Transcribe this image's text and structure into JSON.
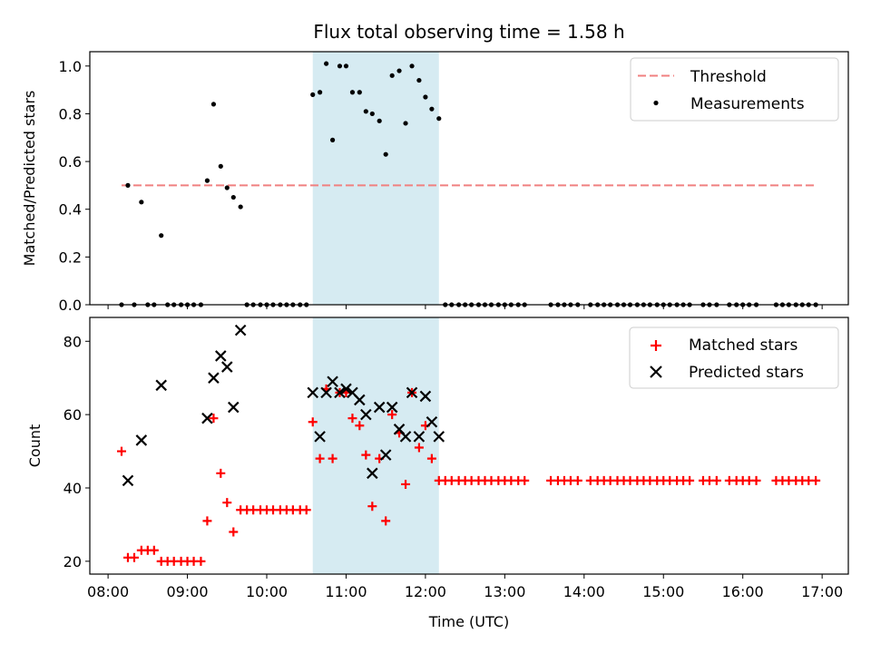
{
  "title": "Flux total observing time = 1.58 h",
  "colors": {
    "threshold": "#f08080",
    "measurement": "#000000",
    "matched": "#ff0000",
    "predicted": "#000000",
    "shade": "#add8e6"
  },
  "chart_data": [
    {
      "type": "scatter",
      "name": "ratio-panel",
      "ylabel": "Matched/Predicted stars",
      "xlabel": "",
      "xlim": [
        7.77,
        17.33
      ],
      "ylim": [
        0.0,
        1.06
      ],
      "yticks": [
        0.0,
        0.2,
        0.4,
        0.6,
        0.8,
        1.0
      ],
      "ytick_labels": [
        "0.0",
        "0.2",
        "0.4",
        "0.6",
        "0.8",
        "1.0"
      ],
      "shaded_region": [
        10.58,
        12.17
      ],
      "legend": {
        "position": "top-right",
        "entries": [
          "Threshold",
          "Measurements"
        ]
      },
      "threshold": {
        "name": "Threshold",
        "value": 0.5,
        "x_range": [
          8.17,
          16.92
        ]
      },
      "series": [
        {
          "name": "Measurements",
          "marker": "dot",
          "points": [
            [
              8.17,
              0.0
            ],
            [
              8.25,
              0.5
            ],
            [
              8.33,
              0.0
            ],
            [
              8.42,
              0.43
            ],
            [
              8.5,
              0.0
            ],
            [
              8.58,
              0.0
            ],
            [
              8.67,
              0.29
            ],
            [
              8.75,
              0.0
            ],
            [
              8.83,
              0.0
            ],
            [
              8.92,
              0.0
            ],
            [
              9.0,
              0.0
            ],
            [
              9.08,
              0.0
            ],
            [
              9.17,
              0.0
            ],
            [
              9.25,
              0.52
            ],
            [
              9.33,
              0.84
            ],
            [
              9.42,
              0.58
            ],
            [
              9.5,
              0.49
            ],
            [
              9.58,
              0.45
            ],
            [
              9.67,
              0.41
            ],
            [
              9.75,
              0.0
            ],
            [
              9.83,
              0.0
            ],
            [
              9.92,
              0.0
            ],
            [
              10.0,
              0.0
            ],
            [
              10.08,
              0.0
            ],
            [
              10.17,
              0.0
            ],
            [
              10.25,
              0.0
            ],
            [
              10.33,
              0.0
            ],
            [
              10.42,
              0.0
            ],
            [
              10.5,
              0.0
            ],
            [
              10.58,
              0.88
            ],
            [
              10.67,
              0.89
            ],
            [
              10.75,
              1.01
            ],
            [
              10.83,
              0.69
            ],
            [
              10.92,
              1.0
            ],
            [
              11.0,
              1.0
            ],
            [
              11.08,
              0.89
            ],
            [
              11.17,
              0.89
            ],
            [
              11.25,
              0.81
            ],
            [
              11.33,
              0.8
            ],
            [
              11.42,
              0.77
            ],
            [
              11.5,
              0.63
            ],
            [
              11.58,
              0.96
            ],
            [
              11.67,
              0.98
            ],
            [
              11.75,
              0.76
            ],
            [
              11.83,
              1.0
            ],
            [
              11.92,
              0.94
            ],
            [
              12.0,
              0.87
            ],
            [
              12.08,
              0.82
            ],
            [
              12.17,
              0.78
            ],
            [
              12.25,
              0.0
            ],
            [
              12.33,
              0.0
            ],
            [
              12.42,
              0.0
            ],
            [
              12.5,
              0.0
            ],
            [
              12.58,
              0.0
            ],
            [
              12.67,
              0.0
            ],
            [
              12.75,
              0.0
            ],
            [
              12.83,
              0.0
            ],
            [
              12.92,
              0.0
            ],
            [
              13.0,
              0.0
            ],
            [
              13.08,
              0.0
            ],
            [
              13.17,
              0.0
            ],
            [
              13.25,
              0.0
            ],
            [
              13.58,
              0.0
            ],
            [
              13.67,
              0.0
            ],
            [
              13.75,
              0.0
            ],
            [
              13.83,
              0.0
            ],
            [
              13.92,
              0.0
            ],
            [
              14.08,
              0.0
            ],
            [
              14.17,
              0.0
            ],
            [
              14.25,
              0.0
            ],
            [
              14.33,
              0.0
            ],
            [
              14.42,
              0.0
            ],
            [
              14.5,
              0.0
            ],
            [
              14.58,
              0.0
            ],
            [
              14.67,
              0.0
            ],
            [
              14.75,
              0.0
            ],
            [
              14.83,
              0.0
            ],
            [
              14.92,
              0.0
            ],
            [
              15.0,
              0.0
            ],
            [
              15.08,
              0.0
            ],
            [
              15.17,
              0.0
            ],
            [
              15.25,
              0.0
            ],
            [
              15.33,
              0.0
            ],
            [
              15.5,
              0.0
            ],
            [
              15.58,
              0.0
            ],
            [
              15.67,
              0.0
            ],
            [
              15.83,
              0.0
            ],
            [
              15.92,
              0.0
            ],
            [
              16.0,
              0.0
            ],
            [
              16.08,
              0.0
            ],
            [
              16.17,
              0.0
            ],
            [
              16.42,
              0.0
            ],
            [
              16.5,
              0.0
            ],
            [
              16.58,
              0.0
            ],
            [
              16.67,
              0.0
            ],
            [
              16.75,
              0.0
            ],
            [
              16.83,
              0.0
            ],
            [
              16.92,
              0.0
            ]
          ]
        }
      ]
    },
    {
      "type": "scatter",
      "name": "count-panel",
      "ylabel": "Count",
      "xlabel": "Time (UTC)",
      "xlim": [
        7.77,
        17.33
      ],
      "ylim": [
        16.5,
        86.5
      ],
      "yticks": [
        20,
        40,
        60,
        80
      ],
      "ytick_labels": [
        "20",
        "40",
        "60",
        "80"
      ],
      "xticks": [
        8,
        9,
        10,
        11,
        12,
        13,
        14,
        15,
        16,
        17
      ],
      "xtick_labels": [
        "08:00",
        "09:00",
        "10:00",
        "11:00",
        "12:00",
        "13:00",
        "14:00",
        "15:00",
        "16:00",
        "17:00"
      ],
      "shaded_region": [
        10.58,
        12.17
      ],
      "legend": {
        "position": "top-right",
        "entries": [
          "Matched stars",
          "Predicted stars"
        ]
      },
      "series": [
        {
          "name": "Matched stars",
          "marker": "plus",
          "points": [
            [
              8.17,
              50
            ],
            [
              8.25,
              21
            ],
            [
              8.33,
              21
            ],
            [
              8.42,
              23
            ],
            [
              8.5,
              23
            ],
            [
              8.58,
              23
            ],
            [
              8.67,
              20
            ],
            [
              8.75,
              20
            ],
            [
              8.83,
              20
            ],
            [
              8.92,
              20
            ],
            [
              9.0,
              20
            ],
            [
              9.08,
              20
            ],
            [
              9.17,
              20
            ],
            [
              9.25,
              31
            ],
            [
              9.33,
              59
            ],
            [
              9.42,
              44
            ],
            [
              9.5,
              36
            ],
            [
              9.58,
              28
            ],
            [
              9.67,
              34
            ],
            [
              9.75,
              34
            ],
            [
              9.83,
              34
            ],
            [
              9.92,
              34
            ],
            [
              10.0,
              34
            ],
            [
              10.08,
              34
            ],
            [
              10.17,
              34
            ],
            [
              10.25,
              34
            ],
            [
              10.33,
              34
            ],
            [
              10.42,
              34
            ],
            [
              10.5,
              34
            ],
            [
              10.58,
              58
            ],
            [
              10.67,
              48
            ],
            [
              10.75,
              67
            ],
            [
              10.83,
              48
            ],
            [
              10.92,
              66
            ],
            [
              11.0,
              66
            ],
            [
              11.08,
              59
            ],
            [
              11.17,
              57
            ],
            [
              11.25,
              49
            ],
            [
              11.33,
              35
            ],
            [
              11.42,
              48
            ],
            [
              11.5,
              31
            ],
            [
              11.58,
              60
            ],
            [
              11.67,
              55
            ],
            [
              11.75,
              41
            ],
            [
              11.83,
              66
            ],
            [
              11.92,
              51
            ],
            [
              12.0,
              57
            ],
            [
              12.08,
              48
            ],
            [
              12.17,
              42
            ],
            [
              12.25,
              42
            ],
            [
              12.33,
              42
            ],
            [
              12.42,
              42
            ],
            [
              12.5,
              42
            ],
            [
              12.58,
              42
            ],
            [
              12.67,
              42
            ],
            [
              12.75,
              42
            ],
            [
              12.83,
              42
            ],
            [
              12.92,
              42
            ],
            [
              13.0,
              42
            ],
            [
              13.08,
              42
            ],
            [
              13.17,
              42
            ],
            [
              13.25,
              42
            ],
            [
              13.58,
              42
            ],
            [
              13.67,
              42
            ],
            [
              13.75,
              42
            ],
            [
              13.83,
              42
            ],
            [
              13.92,
              42
            ],
            [
              14.08,
              42
            ],
            [
              14.17,
              42
            ],
            [
              14.25,
              42
            ],
            [
              14.33,
              42
            ],
            [
              14.42,
              42
            ],
            [
              14.5,
              42
            ],
            [
              14.58,
              42
            ],
            [
              14.67,
              42
            ],
            [
              14.75,
              42
            ],
            [
              14.83,
              42
            ],
            [
              14.92,
              42
            ],
            [
              15.0,
              42
            ],
            [
              15.08,
              42
            ],
            [
              15.17,
              42
            ],
            [
              15.25,
              42
            ],
            [
              15.33,
              42
            ],
            [
              15.5,
              42
            ],
            [
              15.58,
              42
            ],
            [
              15.67,
              42
            ],
            [
              15.83,
              42
            ],
            [
              15.92,
              42
            ],
            [
              16.0,
              42
            ],
            [
              16.08,
              42
            ],
            [
              16.17,
              42
            ],
            [
              16.42,
              42
            ],
            [
              16.5,
              42
            ],
            [
              16.58,
              42
            ],
            [
              16.67,
              42
            ],
            [
              16.75,
              42
            ],
            [
              16.83,
              42
            ],
            [
              16.92,
              42
            ]
          ]
        },
        {
          "name": "Predicted stars",
          "marker": "x",
          "points": [
            [
              8.25,
              42
            ],
            [
              8.42,
              53
            ],
            [
              8.67,
              68
            ],
            [
              9.25,
              59
            ],
            [
              9.33,
              70
            ],
            [
              9.42,
              76
            ],
            [
              9.5,
              73
            ],
            [
              9.58,
              62
            ],
            [
              9.67,
              83
            ],
            [
              10.58,
              66
            ],
            [
              10.67,
              54
            ],
            [
              10.75,
              66
            ],
            [
              10.83,
              69
            ],
            [
              10.92,
              66
            ],
            [
              11.0,
              67
            ],
            [
              11.08,
              66
            ],
            [
              11.17,
              64
            ],
            [
              11.25,
              60
            ],
            [
              11.33,
              44
            ],
            [
              11.42,
              62
            ],
            [
              11.5,
              49
            ],
            [
              11.58,
              62
            ],
            [
              11.67,
              56
            ],
            [
              11.75,
              54
            ],
            [
              11.83,
              66
            ],
            [
              11.92,
              54
            ],
            [
              12.0,
              65
            ],
            [
              12.08,
              58
            ],
            [
              12.17,
              54
            ]
          ]
        }
      ]
    }
  ]
}
